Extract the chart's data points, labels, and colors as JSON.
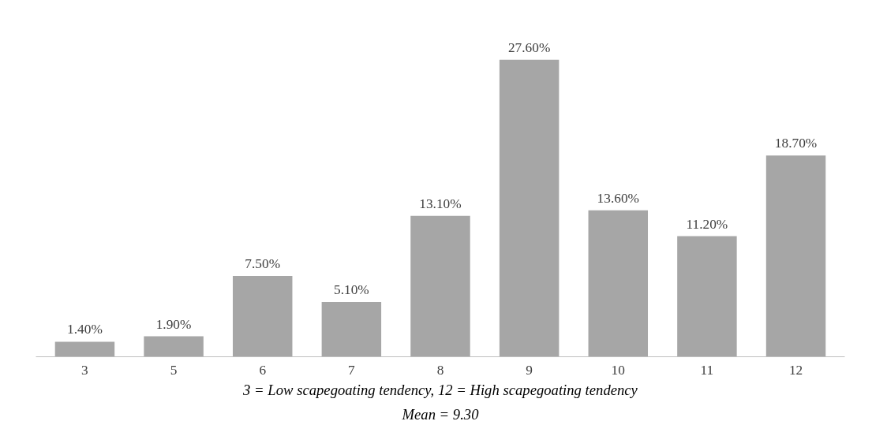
{
  "chart_data": {
    "type": "bar",
    "xlabel": "3 = Low scapegoating tendency, 12 = High scapegoating tendency",
    "annotations": [
      "Mean = 9.30"
    ],
    "categories": [
      "3",
      "5",
      "6",
      "7",
      "8",
      "9",
      "10",
      "11",
      "12"
    ],
    "values": [
      1.4,
      1.9,
      7.5,
      5.1,
      13.1,
      27.6,
      13.6,
      11.2,
      18.7
    ],
    "value_labels": [
      "1.40%",
      "1.90%",
      "7.50%",
      "5.10%",
      "13.10%",
      "27.60%",
      "13.60%",
      "11.20%",
      "18.70%"
    ],
    "color": "#a6a6a6",
    "grid": false
  }
}
